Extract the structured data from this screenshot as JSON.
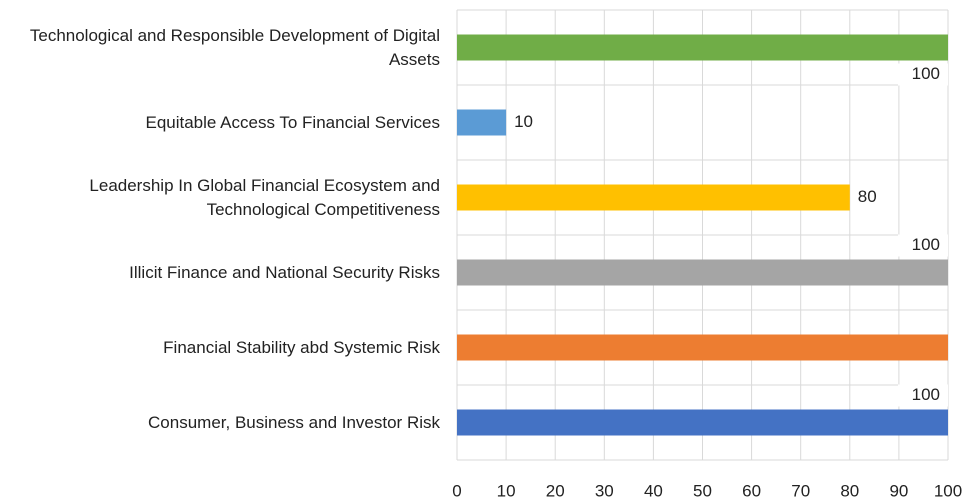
{
  "chart_data": {
    "type": "barh",
    "categories": [
      "Technological and Responsible Development of Digital Assets",
      "Equitable Access To Financial Services",
      "Leadership In Global Financial Ecosystem and Technological Competitiveness",
      "Illicit Finance and National Security Risks",
      "Financial Stability abd Systemic Risk",
      "Consumer, Business and Investor Risk"
    ],
    "values": [
      100,
      10,
      80,
      100,
      100,
      100
    ],
    "value_labels": [
      "100",
      "10",
      "80",
      "100",
      null,
      "100"
    ],
    "colors": [
      "#70ad47",
      "#5b9bd5",
      "#ffc000",
      "#a5a5a5",
      "#ed7d31",
      "#4472c4"
    ],
    "xlim": [
      0,
      100
    ],
    "xticks": [
      0,
      10,
      20,
      30,
      40,
      50,
      60,
      70,
      80,
      90,
      100
    ],
    "grid": true
  }
}
